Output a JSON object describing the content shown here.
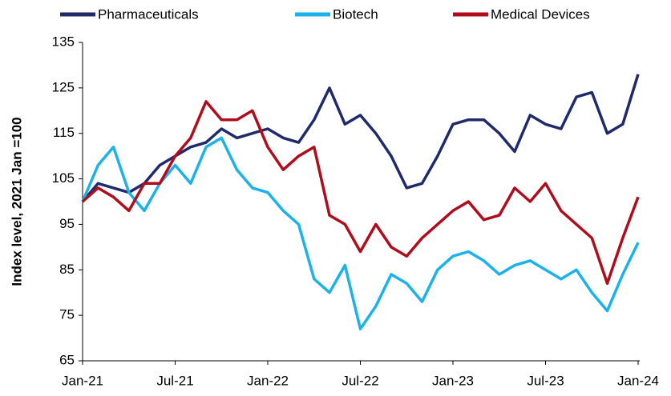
{
  "chart_data": {
    "type": "line",
    "y_label": "Index level, 2021 Jan =100",
    "categories": [
      "Jan-21",
      null,
      null,
      null,
      null,
      null,
      "Jul-21",
      null,
      null,
      null,
      null,
      null,
      "Jan-22",
      null,
      null,
      null,
      null,
      null,
      "Jul-22",
      null,
      null,
      null,
      null,
      null,
      "Jan-23",
      null,
      null,
      null,
      null,
      null,
      "Jul-23",
      null,
      null,
      null,
      null,
      null,
      "Jan-24"
    ],
    "series": [
      {
        "name": "Pharmaceuticals",
        "color": "#1f2a6b",
        "values": [
          100,
          104,
          103,
          102,
          104,
          108,
          110,
          112,
          113,
          116,
          114,
          115,
          116,
          114,
          113,
          118,
          125,
          117,
          119,
          115,
          110,
          103,
          104,
          110,
          117,
          118,
          118,
          115,
          111,
          119,
          117,
          116,
          123,
          124,
          115,
          117,
          128
        ]
      },
      {
        "name": "Biotech",
        "color": "#1ab2e8",
        "values": [
          100,
          108,
          112,
          102,
          98,
          104,
          108,
          104,
          112,
          114,
          107,
          103,
          102,
          98,
          95,
          83,
          80,
          86,
          72,
          77,
          84,
          82,
          78,
          85,
          88,
          89,
          87,
          84,
          86,
          87,
          85,
          83,
          85,
          80,
          76,
          84,
          91
        ]
      },
      {
        "name": "Medical Devices",
        "color": "#b00c1c",
        "values": [
          100,
          103,
          101,
          98,
          104,
          104,
          110,
          114,
          122,
          118,
          118,
          120,
          112,
          107,
          110,
          112,
          97,
          95,
          89,
          95,
          90,
          88,
          92,
          95,
          98,
          100,
          96,
          97,
          103,
          100,
          104,
          98,
          95,
          92,
          82,
          92,
          101
        ]
      }
    ],
    "ylim": [
      65,
      135
    ],
    "yticks": [
      65,
      75,
      85,
      95,
      105,
      115,
      125,
      135
    ],
    "legend": "top",
    "grid": false
  }
}
